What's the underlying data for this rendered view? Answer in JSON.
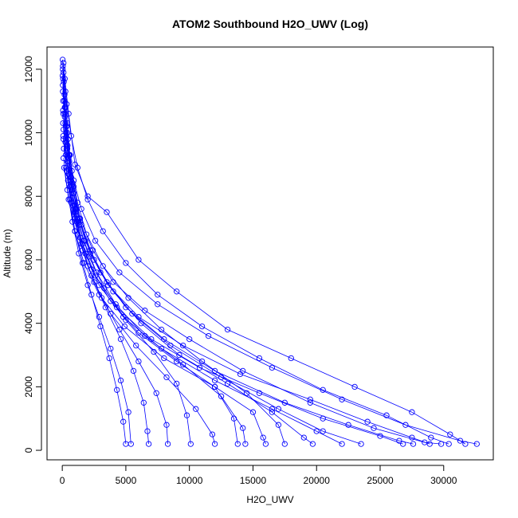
{
  "chart_data": {
    "type": "scatter",
    "title": "ATOM2 Southbound H2O_UWV (Log)",
    "xlabel": "H2O_UWV",
    "ylabel": "Altitude (m)",
    "xlim": [
      -1200,
      33900
    ],
    "ylim": [
      -300,
      12700
    ],
    "xticks": [
      0,
      5000,
      10000,
      15000,
      20000,
      25000,
      30000
    ],
    "yticks": [
      0,
      2000,
      4000,
      6000,
      8000,
      10000,
      12000
    ],
    "grid": false,
    "legend": "none",
    "series_color": "#0000ff",
    "profiles": [
      [
        [
          30,
          12300
        ],
        [
          120,
          11600
        ],
        [
          250,
          10800
        ],
        [
          400,
          10000
        ],
        [
          600,
          9300
        ],
        [
          900,
          8500
        ],
        [
          1500,
          7600
        ],
        [
          2600,
          6600
        ],
        [
          4500,
          5600
        ],
        [
          7500,
          4600
        ],
        [
          11500,
          3600
        ],
        [
          16500,
          2600
        ],
        [
          22000,
          1600
        ],
        [
          27000,
          800
        ],
        [
          31300,
          300
        ],
        [
          32600,
          200
        ]
      ],
      [
        [
          40,
          12000
        ],
        [
          180,
          11000
        ],
        [
          350,
          10200
        ],
        [
          550,
          9300
        ],
        [
          850,
          8400
        ],
        [
          1400,
          7300
        ],
        [
          2400,
          6300
        ],
        [
          4000,
          5300
        ],
        [
          6500,
          4400
        ],
        [
          10000,
          3500
        ],
        [
          14200,
          2500
        ],
        [
          19500,
          1500
        ],
        [
          24500,
          700
        ],
        [
          28500,
          250
        ],
        [
          29800,
          200
        ]
      ],
      [
        [
          60,
          11700
        ],
        [
          200,
          10600
        ],
        [
          420,
          9600
        ],
        [
          700,
          8600
        ],
        [
          1100,
          7600
        ],
        [
          1800,
          6600
        ],
        [
          3000,
          5600
        ],
        [
          5000,
          4500
        ],
        [
          8000,
          3500
        ],
        [
          12000,
          2500
        ],
        [
          17500,
          1500
        ],
        [
          22500,
          800
        ],
        [
          26500,
          300
        ],
        [
          27600,
          200
        ]
      ],
      [
        [
          50,
          11300
        ],
        [
          250,
          10300
        ],
        [
          500,
          9300
        ],
        [
          800,
          8300
        ],
        [
          1300,
          7300
        ],
        [
          2200,
          6300
        ],
        [
          3500,
          5300
        ],
        [
          5500,
          4300
        ],
        [
          8500,
          3300
        ],
        [
          12500,
          2300
        ],
        [
          17000,
          1300
        ],
        [
          20500,
          600
        ],
        [
          23500,
          200
        ]
      ],
      [
        [
          70,
          11000
        ],
        [
          300,
          10000
        ],
        [
          550,
          9100
        ],
        [
          900,
          8100
        ],
        [
          1500,
          7100
        ],
        [
          2500,
          6000
        ],
        [
          4000,
          5000
        ],
        [
          6200,
          4000
        ],
        [
          9200,
          3000
        ],
        [
          13000,
          2100
        ],
        [
          16500,
          1200
        ],
        [
          19000,
          400
        ],
        [
          19700,
          200
        ]
      ],
      [
        [
          30,
          11800
        ],
        [
          200,
          10800
        ],
        [
          450,
          9800
        ],
        [
          750,
          8800
        ],
        [
          1200,
          7800
        ],
        [
          1900,
          6800
        ],
        [
          3200,
          5800
        ],
        [
          5200,
          4800
        ],
        [
          7800,
          3800
        ],
        [
          11000,
          2800
        ],
        [
          14500,
          1800
        ],
        [
          17000,
          800
        ],
        [
          17500,
          200
        ]
      ],
      [
        [
          80,
          10600
        ],
        [
          350,
          9600
        ],
        [
          650,
          8600
        ],
        [
          1000,
          7600
        ],
        [
          1700,
          6600
        ],
        [
          2700,
          5600
        ],
        [
          4200,
          4600
        ],
        [
          6500,
          3600
        ],
        [
          9500,
          2700
        ],
        [
          12500,
          1700
        ],
        [
          14200,
          700
        ],
        [
          14400,
          200
        ]
      ],
      [
        [
          60,
          10300
        ],
        [
          280,
          9300
        ],
        [
          600,
          8300
        ],
        [
          1000,
          7300
        ],
        [
          1600,
          6300
        ],
        [
          2500,
          5300
        ],
        [
          3800,
          4300
        ],
        [
          5800,
          3300
        ],
        [
          8200,
          2300
        ],
        [
          10500,
          1300
        ],
        [
          11800,
          500
        ],
        [
          12000,
          200
        ]
      ],
      [
        [
          100,
          10100
        ],
        [
          400,
          9100
        ],
        [
          800,
          8100
        ],
        [
          1300,
          7100
        ],
        [
          2100,
          6100
        ],
        [
          3300,
          5100
        ],
        [
          5000,
          4100
        ],
        [
          7200,
          3100
        ],
        [
          9000,
          2100
        ],
        [
          9800,
          1100
        ],
        [
          10100,
          200
        ]
      ],
      [
        [
          90,
          9800
        ],
        [
          350,
          8800
        ],
        [
          700,
          7800
        ],
        [
          1200,
          6800
        ],
        [
          2000,
          5800
        ],
        [
          3100,
          4800
        ],
        [
          4500,
          3800
        ],
        [
          6000,
          2800
        ],
        [
          7400,
          1800
        ],
        [
          8200,
          800
        ],
        [
          8300,
          200
        ]
      ],
      [
        [
          120,
          9500
        ],
        [
          450,
          8500
        ],
        [
          900,
          7500
        ],
        [
          1500,
          6500
        ],
        [
          2300,
          5500
        ],
        [
          3400,
          4500
        ],
        [
          4600,
          3500
        ],
        [
          5600,
          2500
        ],
        [
          6400,
          1500
        ],
        [
          6700,
          600
        ],
        [
          6800,
          200
        ]
      ],
      [
        [
          100,
          9200
        ],
        [
          400,
          8200
        ],
        [
          800,
          7200
        ],
        [
          1300,
          6200
        ],
        [
          2000,
          5200
        ],
        [
          2900,
          4200
        ],
        [
          3800,
          3200
        ],
        [
          4600,
          2200
        ],
        [
          5200,
          1200
        ],
        [
          5400,
          200
        ]
      ],
      [
        [
          150,
          8900
        ],
        [
          500,
          7900
        ],
        [
          1000,
          6900
        ],
        [
          1600,
          5900
        ],
        [
          2300,
          4900
        ],
        [
          3000,
          3900
        ],
        [
          3700,
          2900
        ],
        [
          4300,
          1900
        ],
        [
          4800,
          900
        ],
        [
          5000,
          200
        ]
      ],
      [
        [
          100,
          12200
        ],
        [
          250,
          11300
        ],
        [
          400,
          10300
        ],
        [
          600,
          9300
        ],
        [
          900,
          8300
        ],
        [
          1400,
          7200
        ],
        [
          2200,
          6200
        ],
        [
          3600,
          5200
        ],
        [
          6000,
          4200
        ],
        [
          9500,
          3300
        ],
        [
          14000,
          2400
        ],
        [
          19500,
          1600
        ],
        [
          24000,
          900
        ],
        [
          27500,
          400
        ],
        [
          28900,
          200
        ]
      ],
      [
        [
          40,
          11500
        ],
        [
          200,
          10500
        ],
        [
          400,
          9500
        ],
        [
          650,
          8500
        ],
        [
          1000,
          7500
        ],
        [
          1600,
          6500
        ],
        [
          2600,
          5500
        ],
        [
          4300,
          4500
        ],
        [
          7000,
          3500
        ],
        [
          10800,
          2600
        ],
        [
          15500,
          1800
        ],
        [
          20500,
          1000
        ],
        [
          25000,
          450
        ],
        [
          26800,
          200
        ]
      ],
      [
        [
          50,
          12100
        ],
        [
          180,
          11200
        ],
        [
          320,
          10200
        ],
        [
          500,
          9200
        ],
        [
          750,
          8200
        ],
        [
          1150,
          7200
        ],
        [
          1800,
          6200
        ],
        [
          2900,
          5200
        ],
        [
          4800,
          4200
        ],
        [
          7800,
          3200
        ],
        [
          12000,
          2200
        ],
        [
          16500,
          1300
        ],
        [
          20000,
          600
        ],
        [
          22000,
          200
        ]
      ],
      [
        [
          70,
          9900
        ],
        [
          300,
          8900
        ],
        [
          600,
          7900
        ],
        [
          1000,
          6900
        ],
        [
          1700,
          5900
        ],
        [
          2900,
          4900
        ],
        [
          4900,
          3900
        ],
        [
          8000,
          2900
        ],
        [
          12000,
          2000
        ],
        [
          15000,
          1200
        ],
        [
          15800,
          400
        ],
        [
          16000,
          200
        ]
      ],
      [
        [
          60,
          10700
        ],
        [
          250,
          9700
        ],
        [
          500,
          8700
        ],
        [
          850,
          7700
        ],
        [
          1400,
          6700
        ],
        [
          2300,
          5700
        ],
        [
          3800,
          4700
        ],
        [
          6000,
          3700
        ],
        [
          9000,
          2800
        ],
        [
          12000,
          2000
        ],
        [
          13500,
          1000
        ],
        [
          13800,
          200
        ]
      ],
      [
        [
          200,
          11700
        ],
        [
          500,
          10600
        ],
        [
          1000,
          9000
        ],
        [
          2000,
          8000
        ],
        [
          3500,
          7500
        ],
        [
          6000,
          6000
        ],
        [
          9000,
          5000
        ],
        [
          13000,
          3800
        ],
        [
          18000,
          2900
        ],
        [
          23000,
          2000
        ],
        [
          27500,
          1200
        ],
        [
          30500,
          500
        ],
        [
          31700,
          200
        ]
      ],
      [
        [
          100,
          11900
        ],
        [
          350,
          10900
        ],
        [
          700,
          9900
        ],
        [
          1200,
          8900
        ],
        [
          2000,
          7900
        ],
        [
          3200,
          6900
        ],
        [
          5000,
          5900
        ],
        [
          7500,
          4900
        ],
        [
          11000,
          3900
        ],
        [
          15500,
          2900
        ],
        [
          20500,
          1900
        ],
        [
          25500,
          1100
        ],
        [
          29000,
          400
        ],
        [
          30400,
          200
        ]
      ]
    ]
  }
}
